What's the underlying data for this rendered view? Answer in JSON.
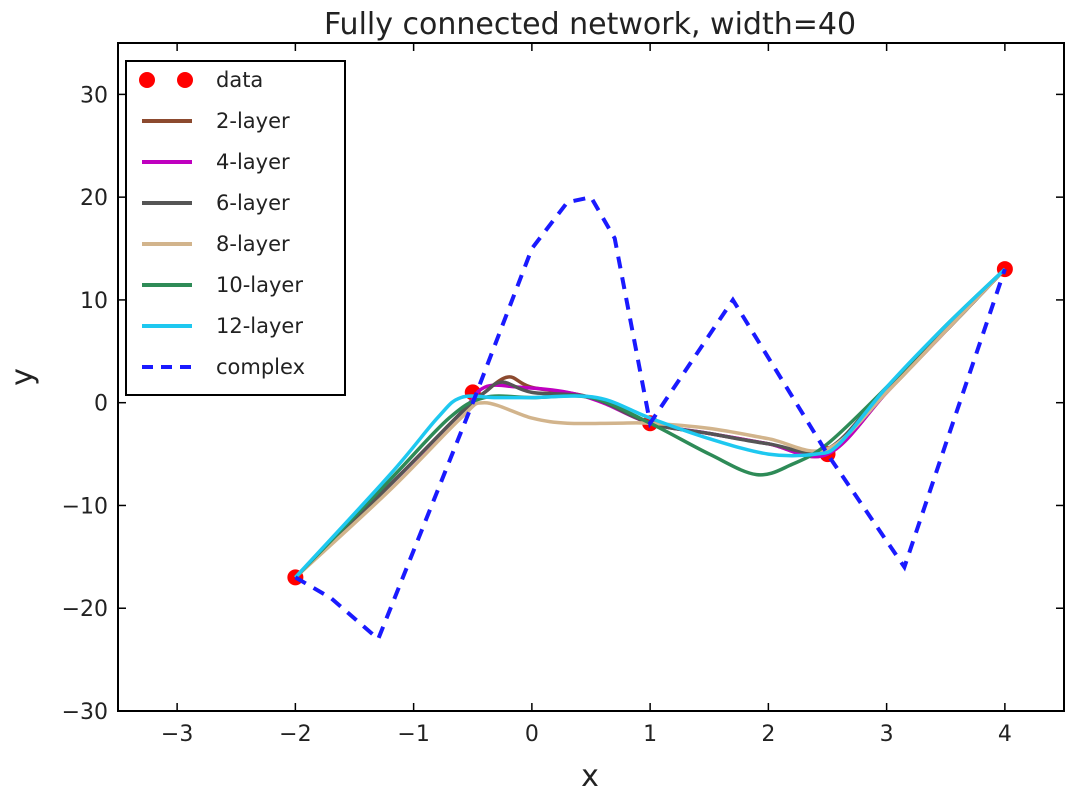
{
  "chart_data": {
    "type": "line",
    "title": "Fully connected network, width=40",
    "xlabel": "x",
    "ylabel": "y",
    "xlim": [
      -3.5,
      4.5
    ],
    "ylim": [
      -30,
      35
    ],
    "xticks": [
      -3,
      -2,
      -1,
      0,
      1,
      2,
      3,
      4
    ],
    "yticks": [
      -30,
      -20,
      -10,
      0,
      10,
      20,
      30
    ],
    "xtick_labels": [
      "−3",
      "−2",
      "−1",
      "0",
      "1",
      "2",
      "3",
      "4"
    ],
    "ytick_labels": [
      "−30",
      "−20",
      "−10",
      "0",
      "10",
      "20",
      "30"
    ],
    "grid": false,
    "legend_position": "top-left",
    "series": [
      {
        "name": "data",
        "style": "markers",
        "color": "#ff0000",
        "points": [
          [
            -2,
            -17
          ],
          [
            -0.5,
            1
          ],
          [
            1,
            -2
          ],
          [
            2.5,
            -5
          ],
          [
            4,
            13
          ]
        ]
      },
      {
        "name": "2-layer",
        "style": "solid",
        "color": "#8c4a2f",
        "points": [
          [
            -2,
            -17
          ],
          [
            -1.2,
            -8
          ],
          [
            -0.6,
            -1
          ],
          [
            -0.4,
            1
          ],
          [
            -0.2,
            2.5
          ],
          [
            0,
            1.5
          ],
          [
            0.5,
            0.5
          ],
          [
            1,
            -2
          ],
          [
            1.5,
            -3
          ],
          [
            2,
            -4
          ],
          [
            2.5,
            -5
          ],
          [
            3,
            1
          ],
          [
            3.5,
            7
          ],
          [
            4,
            13
          ]
        ]
      },
      {
        "name": "4-layer",
        "style": "solid",
        "color": "#bf00bf",
        "points": [
          [
            -2,
            -17
          ],
          [
            -1.2,
            -8
          ],
          [
            -0.6,
            -1
          ],
          [
            -0.4,
            1.5
          ],
          [
            -0.1,
            1.5
          ],
          [
            0.3,
            1
          ],
          [
            0.6,
            0
          ],
          [
            1,
            -2
          ],
          [
            1.5,
            -3
          ],
          [
            2,
            -4
          ],
          [
            2.5,
            -5
          ],
          [
            3,
            1
          ],
          [
            3.5,
            7
          ],
          [
            4,
            13
          ]
        ]
      },
      {
        "name": "6-layer",
        "style": "solid",
        "color": "#555555",
        "points": [
          [
            -2,
            -17
          ],
          [
            -1.2,
            -8
          ],
          [
            -0.6,
            -1
          ],
          [
            -0.4,
            1
          ],
          [
            -0.25,
            2
          ],
          [
            0,
            1
          ],
          [
            0.5,
            0.5
          ],
          [
            1,
            -2
          ],
          [
            1.5,
            -3
          ],
          [
            2,
            -4
          ],
          [
            2.5,
            -4.5
          ],
          [
            3,
            1.5
          ],
          [
            3.5,
            7
          ],
          [
            4,
            13
          ]
        ]
      },
      {
        "name": "8-layer",
        "style": "solid",
        "color": "#d2b48c",
        "points": [
          [
            -2,
            -17
          ],
          [
            -1.2,
            -8.5
          ],
          [
            -0.6,
            -1.5
          ],
          [
            -0.4,
            0
          ],
          [
            0,
            -1.5
          ],
          [
            0.3,
            -2
          ],
          [
            0.7,
            -2
          ],
          [
            1,
            -2
          ],
          [
            1.5,
            -2.5
          ],
          [
            2,
            -3.5
          ],
          [
            2.5,
            -4.5
          ],
          [
            3,
            1
          ],
          [
            3.5,
            7
          ],
          [
            4,
            13
          ]
        ]
      },
      {
        "name": "10-layer",
        "style": "solid",
        "color": "#2e8b57",
        "points": [
          [
            -2,
            -17
          ],
          [
            -1.2,
            -7.5
          ],
          [
            -0.7,
            -1.5
          ],
          [
            -0.4,
            0.5
          ],
          [
            0,
            0.5
          ],
          [
            0.5,
            0.5
          ],
          [
            1,
            -2
          ],
          [
            1.5,
            -5
          ],
          [
            1.9,
            -7
          ],
          [
            2.2,
            -6
          ],
          [
            2.5,
            -4
          ],
          [
            3,
            1.5
          ],
          [
            3.5,
            7.5
          ],
          [
            4,
            13
          ]
        ]
      },
      {
        "name": "12-layer",
        "style": "solid",
        "color": "#1ec8f0",
        "points": [
          [
            -2,
            -17
          ],
          [
            -1.2,
            -7
          ],
          [
            -0.8,
            -1.5
          ],
          [
            -0.6,
            0.5
          ],
          [
            -0.3,
            0.5
          ],
          [
            0,
            0.5
          ],
          [
            0.55,
            0.5
          ],
          [
            1,
            -1.5
          ],
          [
            1.5,
            -3.5
          ],
          [
            2,
            -5
          ],
          [
            2.4,
            -5
          ],
          [
            2.6,
            -4
          ],
          [
            3,
            1.5
          ],
          [
            3.5,
            7.5
          ],
          [
            4,
            13
          ]
        ]
      },
      {
        "name": "complex",
        "style": "dashed",
        "color": "#1a1aff",
        "points": [
          [
            -2,
            -17
          ],
          [
            -1.7,
            -19
          ],
          [
            -1.3,
            -23
          ],
          [
            -0.5,
            0
          ],
          [
            0,
            15
          ],
          [
            0.3,
            19.5
          ],
          [
            0.5,
            20
          ],
          [
            0.7,
            16
          ],
          [
            1,
            -2
          ],
          [
            1.7,
            10
          ],
          [
            2.5,
            -5
          ],
          [
            3.15,
            -16
          ],
          [
            3.5,
            -4
          ],
          [
            4,
            13
          ]
        ]
      }
    ]
  }
}
